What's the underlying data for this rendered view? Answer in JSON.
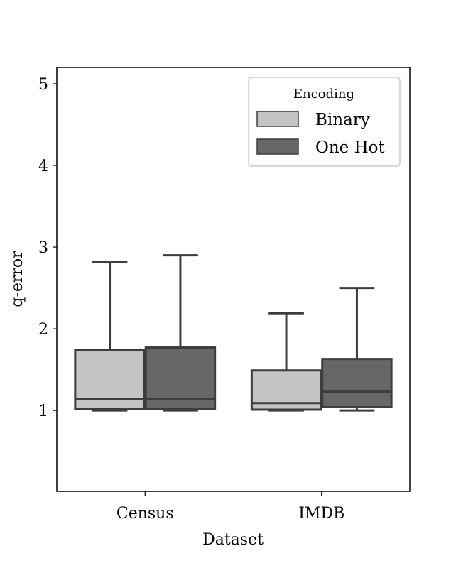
{
  "chart_data": {
    "type": "box",
    "title": "",
    "xlabel": "Dataset",
    "ylabel": "q-error",
    "ylim": [
      0.01,
      5.2
    ],
    "yticks": [
      1,
      2,
      3,
      4,
      5
    ],
    "categories": [
      "Census",
      "IMDB"
    ],
    "legend": {
      "title": "Encoding",
      "placement": "top-right"
    },
    "grid": false,
    "series": [
      {
        "name": "Binary",
        "color": "#c4c4c4",
        "boxes": [
          {
            "min": 1.0,
            "q1": 1.02,
            "median": 1.14,
            "q3": 1.74,
            "max": 2.82
          },
          {
            "min": 1.0,
            "q1": 1.01,
            "median": 1.09,
            "q3": 1.49,
            "max": 2.19
          }
        ]
      },
      {
        "name": "One Hot",
        "color": "#676767",
        "boxes": [
          {
            "min": 1.0,
            "q1": 1.02,
            "median": 1.14,
            "q3": 1.77,
            "max": 2.9
          },
          {
            "min": 1.0,
            "q1": 1.04,
            "median": 1.23,
            "q3": 1.63,
            "max": 2.5
          }
        ]
      }
    ],
    "line_color": "#3d3d3d"
  }
}
